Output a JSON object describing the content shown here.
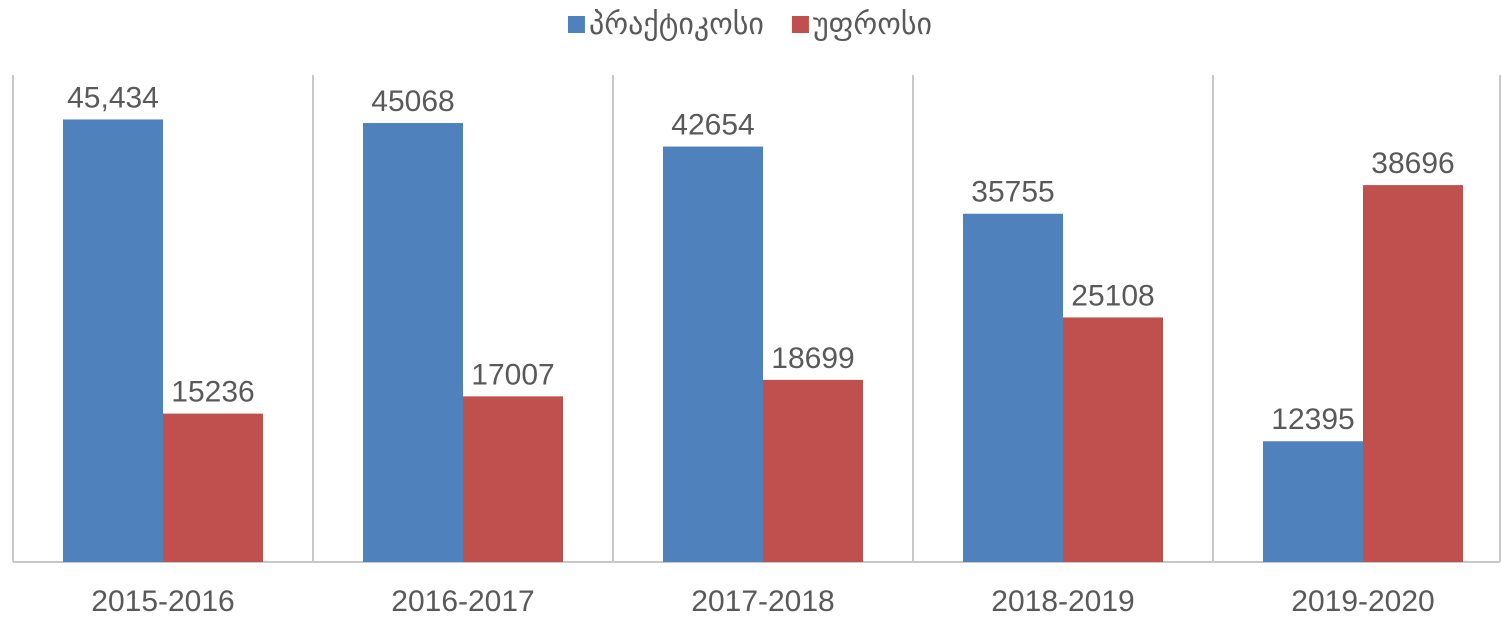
{
  "chart_data": {
    "type": "bar",
    "categories": [
      "2015-2016",
      "2016-2017",
      "2017-2018",
      "2018-2019",
      "2019-2020"
    ],
    "series": [
      {
        "name": "პრაქტიკოსი",
        "color": "#4f81bd",
        "values": [
          45434,
          45068,
          42654,
          35755,
          12395
        ],
        "value_labels": [
          "45,434",
          "45068",
          "42654",
          "35755",
          "12395"
        ]
      },
      {
        "name": "უფროსი",
        "color": "#c0504d",
        "values": [
          15236,
          17007,
          18699,
          25108,
          38696
        ]
      }
    ],
    "ylim": [
      0,
      50000
    ],
    "legend": "top"
  }
}
